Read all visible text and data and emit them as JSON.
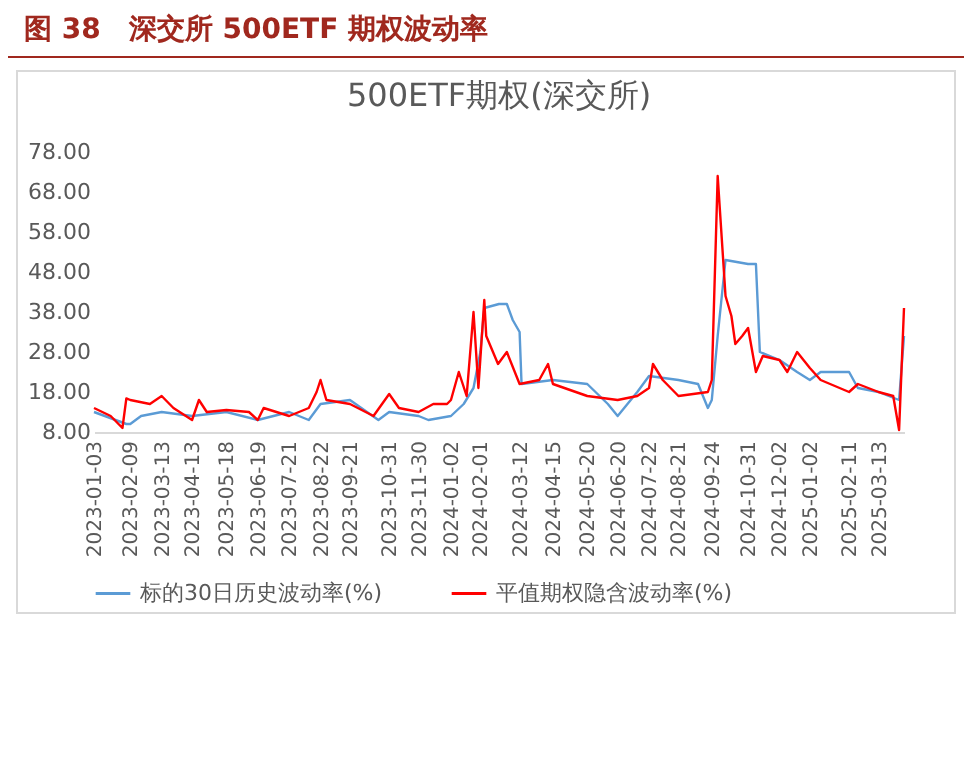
{
  "chart_data": {
    "type": "line",
    "title": "图 38　深交所 500ETF 期权波动率",
    "subtitle": "500ETF期权(深交所)",
    "legend": "bottom",
    "xlim": [
      "2023-01-03",
      "2025-04-08"
    ],
    "xticks": [
      "2023-01-03",
      "2023-02-09",
      "2023-03-13",
      "2023-04-13",
      "2023-05-18",
      "2023-06-19",
      "2023-07-21",
      "2023-08-22",
      "2023-09-21",
      "2023-10-31",
      "2023-11-30",
      "2024-01-02",
      "2024-02-01",
      "2024-03-12",
      "2024-04-15",
      "2024-05-20",
      "2024-06-20",
      "2024-07-22",
      "2024-08-21",
      "2024-09-24",
      "2024-10-31",
      "2024-12-02",
      "2025-01-02",
      "2025-02-11",
      "2025-03-13"
    ],
    "ylim": [
      8,
      78
    ],
    "yticks": [
      {
        "value": 8,
        "label": "8.00"
      },
      {
        "value": 18,
        "label": "18.00"
      },
      {
        "value": 28,
        "label": "28.00"
      },
      {
        "value": 38,
        "label": "38.00"
      },
      {
        "value": 48,
        "label": "48.00"
      },
      {
        "value": 58,
        "label": "58.00"
      },
      {
        "value": 68,
        "label": "68.00"
      },
      {
        "value": 78,
        "label": "78.00"
      }
    ],
    "series": [
      {
        "name": "标的30日历史波动率(%)",
        "color": "#5b9bd5",
        "x": [
          "2023-01-03",
          "2023-02-05",
          "2023-02-09",
          "2023-02-20",
          "2023-03-13",
          "2023-04-13",
          "2023-05-18",
          "2023-06-19",
          "2023-07-21",
          "2023-08-10",
          "2023-08-22",
          "2023-09-21",
          "2023-10-20",
          "2023-10-31",
          "2023-11-30",
          "2023-12-10",
          "2024-01-02",
          "2024-01-15",
          "2024-01-25",
          "2024-02-01",
          "2024-02-05",
          "2024-02-20",
          "2024-02-28",
          "2024-03-05",
          "2024-03-12",
          "2024-03-14",
          "2024-04-15",
          "2024-05-20",
          "2024-06-10",
          "2024-06-20",
          "2024-07-10",
          "2024-07-22",
          "2024-08-21",
          "2024-09-10",
          "2024-09-20",
          "2024-09-24",
          "2024-09-30",
          "2024-10-08",
          "2024-10-31",
          "2024-11-08",
          "2024-11-12",
          "2024-12-02",
          "2024-12-20",
          "2025-01-02",
          "2025-01-13",
          "2025-02-11",
          "2025-02-20",
          "2025-03-13",
          "2025-04-03",
          "2025-04-08"
        ],
        "values": [
          13,
          10,
          10,
          12,
          13,
          12,
          13,
          11,
          13,
          11,
          15,
          16,
          11,
          13,
          12,
          11,
          12,
          15,
          19,
          28,
          39,
          40,
          40,
          36,
          33,
          20,
          21,
          20,
          15,
          12,
          18,
          22,
          21,
          20,
          14,
          16,
          32,
          51,
          50,
          50,
          28,
          26,
          23,
          21,
          23,
          23,
          19,
          18,
          16,
          32
        ]
      },
      {
        "name": "平值期权隐含波动率(%)",
        "color": "#ff0000",
        "x": [
          "2023-01-03",
          "2023-01-20",
          "2023-02-01",
          "2023-02-05",
          "2023-02-09",
          "2023-03-01",
          "2023-03-13",
          "2023-03-25",
          "2023-04-13",
          "2023-04-20",
          "2023-04-28",
          "2023-05-18",
          "2023-06-10",
          "2023-06-19",
          "2023-06-25",
          "2023-07-21",
          "2023-08-10",
          "2023-08-18",
          "2023-08-22",
          "2023-08-28",
          "2023-09-21",
          "2023-10-15",
          "2023-10-31",
          "2023-11-10",
          "2023-11-30",
          "2023-12-15",
          "2023-12-29",
          "2024-01-02",
          "2024-01-10",
          "2024-01-18",
          "2024-01-25",
          "2024-01-30",
          "2024-02-05",
          "2024-02-07",
          "2024-02-19",
          "2024-02-28",
          "2024-03-12",
          "2024-04-01",
          "2024-04-10",
          "2024-04-15",
          "2024-05-20",
          "2024-06-20",
          "2024-07-10",
          "2024-07-22",
          "2024-07-26",
          "2024-08-05",
          "2024-08-21",
          "2024-09-20",
          "2024-09-24",
          "2024-09-30",
          "2024-10-08",
          "2024-10-14",
          "2024-10-18",
          "2024-10-25",
          "2024-10-31",
          "2024-11-08",
          "2024-11-15",
          "2024-12-02",
          "2024-12-10",
          "2024-12-20",
          "2025-01-02",
          "2025-01-13",
          "2025-02-11",
          "2025-02-20",
          "2025-03-13",
          "2025-03-28",
          "2025-04-03",
          "2025-04-08"
        ],
        "values": [
          14,
          12,
          9,
          16.4,
          16,
          15,
          17,
          14,
          11,
          16,
          13,
          13.5,
          13,
          11,
          14,
          12,
          14,
          18,
          21,
          16,
          15,
          12,
          17.5,
          14,
          13,
          15,
          15,
          16,
          23,
          17,
          38,
          19,
          41,
          32,
          25,
          28,
          20,
          21,
          25,
          20,
          17,
          16,
          17,
          19,
          25,
          21,
          17,
          18,
          21,
          72,
          42,
          37,
          30,
          32,
          34,
          23,
          27,
          26,
          23,
          28,
          24,
          21,
          18,
          20,
          18,
          17,
          8.5,
          39
        ]
      }
    ]
  }
}
